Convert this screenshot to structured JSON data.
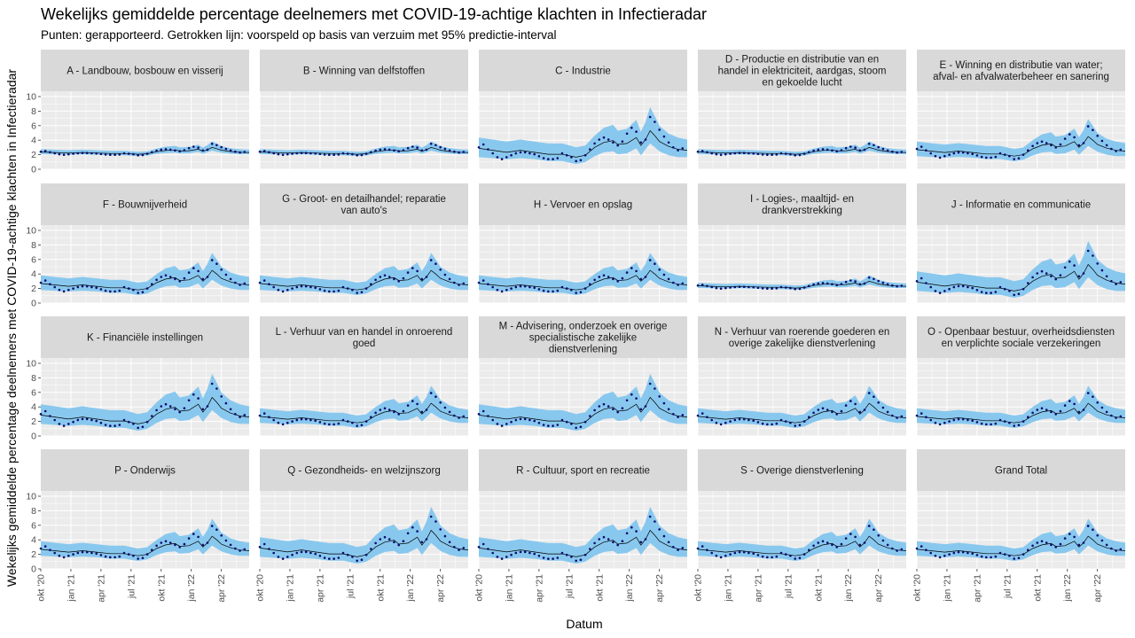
{
  "header": {
    "title": "Wekelijks gemiddelde percentage deelnemers met COVID-19-achtige klachten in Infectieradar",
    "subtitle": "Punten: gerapporteerd. Getrokken lijn: voorspeld op basis van verzuim met 95% predictie-interval"
  },
  "axes": {
    "xlabel": "Datum",
    "ylabel": "Wekelijks gemiddelde percentage deelnemers met COVID-19-achtige klachten in Infectieradar",
    "yticks": [
      "0",
      "2",
      "4",
      "6",
      "8",
      "10"
    ],
    "ylim": [
      0,
      10
    ],
    "xticks": [
      "okt '20",
      "jan '21",
      "apr '21",
      "jul '21",
      "okt '21",
      "jan '22",
      "apr '22"
    ],
    "xrange_weeks": [
      0,
      90
    ]
  },
  "colors": {
    "band": "#89c8ee",
    "points": "#0b0b6e",
    "line": "#000000",
    "panel_bg": "#ebebeb",
    "strip_bg": "#d9d9d9",
    "grid": "#ffffff"
  },
  "chart_data": {
    "type": "line",
    "layout": {
      "rows": 4,
      "cols": 5
    },
    "x_note": "weeks since okt '20",
    "facets": [
      {
        "label": [
          "A - Landbouw, bosbouw en visserij"
        ],
        "profile": "flat"
      },
      {
        "label": [
          "B - Winning van delfstoffen"
        ],
        "profile": "flat"
      },
      {
        "label": [
          "C - Industrie"
        ],
        "profile": "peaky"
      },
      {
        "label": [
          "D - Productie en distributie van en",
          "handel in elektriciteit, aardgas, stoom",
          "en gekoelde lucht"
        ],
        "profile": "flat"
      },
      {
        "label": [
          "E - Winning en distributie van water;",
          "afval- en afvalwaterbeheer en sanering"
        ],
        "profile": "moderate"
      },
      {
        "label": [
          "F - Bouwnijverheid"
        ],
        "profile": "moderate"
      },
      {
        "label": [
          "G - Groot- en detailhandel; reparatie",
          "van auto's"
        ],
        "profile": "moderate"
      },
      {
        "label": [
          "H - Vervoer en opslag"
        ],
        "profile": "moderate"
      },
      {
        "label": [
          "I - Logies-, maaltijd- en",
          "drankverstrekking"
        ],
        "profile": "flat"
      },
      {
        "label": [
          "J - Informatie en communicatie"
        ],
        "profile": "peaky"
      },
      {
        "label": [
          "K - Financiële instellingen"
        ],
        "profile": "peaky"
      },
      {
        "label": [
          "L - Verhuur van en handel in onroerend",
          "goed"
        ],
        "profile": "moderate"
      },
      {
        "label": [
          "M - Advisering, onderzoek en overige",
          "specialistische zakelijke",
          "dienstverlening"
        ],
        "profile": "peaky"
      },
      {
        "label": [
          "N - Verhuur van roerende goederen en",
          "overige zakelijke dienstverlening"
        ],
        "profile": "moderate"
      },
      {
        "label": [
          "O - Openbaar bestuur, overheidsdiensten",
          "en verplichte sociale verzekeringen"
        ],
        "profile": "moderate"
      },
      {
        "label": [
          "P - Onderwijs"
        ],
        "profile": "moderate"
      },
      {
        "label": [
          "Q - Gezondheids- en welzijnszorg"
        ],
        "profile": "peaky"
      },
      {
        "label": [
          "R - Cultuur, sport en recreatie"
        ],
        "profile": "peaky"
      },
      {
        "label": [
          "S - Overige dienstverlening"
        ],
        "profile": "moderate"
      },
      {
        "label": [
          "Grand Total"
        ],
        "profile": "moderate"
      }
    ],
    "reported": [
      [
        0,
        2.8
      ],
      [
        2,
        3.1
      ],
      [
        4,
        2.6
      ],
      [
        6,
        2.2
      ],
      [
        8,
        1.8
      ],
      [
        10,
        1.6
      ],
      [
        12,
        1.8
      ],
      [
        14,
        2.0
      ],
      [
        16,
        2.2
      ],
      [
        18,
        2.3
      ],
      [
        20,
        2.3
      ],
      [
        22,
        2.2
      ],
      [
        24,
        2.1
      ],
      [
        26,
        1.9
      ],
      [
        28,
        1.7
      ],
      [
        30,
        1.6
      ],
      [
        32,
        1.6
      ],
      [
        34,
        1.7
      ],
      [
        36,
        2.2
      ],
      [
        38,
        2.0
      ],
      [
        40,
        1.8
      ],
      [
        42,
        1.4
      ],
      [
        44,
        1.5
      ],
      [
        46,
        2.0
      ],
      [
        48,
        2.6
      ],
      [
        50,
        3.2
      ],
      [
        52,
        3.6
      ],
      [
        54,
        3.8
      ],
      [
        56,
        3.6
      ],
      [
        58,
        3.3
      ],
      [
        60,
        3.0
      ],
      [
        62,
        3.4
      ],
      [
        64,
        4.2
      ],
      [
        66,
        4.8
      ],
      [
        68,
        4.4
      ],
      [
        70,
        3.3
      ],
      [
        72,
        3.6
      ],
      [
        74,
        5.9
      ],
      [
        76,
        5.4
      ],
      [
        78,
        4.6
      ],
      [
        80,
        3.9
      ],
      [
        82,
        3.3
      ],
      [
        84,
        2.8
      ],
      [
        86,
        2.5
      ],
      [
        88,
        2.7
      ]
    ],
    "predicted": [
      [
        0,
        2.7
      ],
      [
        6,
        2.5
      ],
      [
        12,
        2.3
      ],
      [
        18,
        2.5
      ],
      [
        24,
        2.3
      ],
      [
        30,
        2.1
      ],
      [
        36,
        2.1
      ],
      [
        42,
        1.8
      ],
      [
        46,
        2.0
      ],
      [
        50,
        2.8
      ],
      [
        54,
        3.3
      ],
      [
        58,
        3.5
      ],
      [
        60,
        3.1
      ],
      [
        64,
        3.2
      ],
      [
        68,
        3.8
      ],
      [
        70,
        3.0
      ],
      [
        72,
        3.6
      ],
      [
        74,
        4.5
      ],
      [
        76,
        4.0
      ],
      [
        78,
        3.4
      ],
      [
        82,
        2.9
      ],
      [
        86,
        2.6
      ],
      [
        90,
        2.5
      ]
    ],
    "interval": [
      [
        0,
        1.8,
        3.8
      ],
      [
        6,
        1.7,
        3.6
      ],
      [
        12,
        1.6,
        3.4
      ],
      [
        18,
        1.7,
        3.6
      ],
      [
        24,
        1.6,
        3.4
      ],
      [
        30,
        1.4,
        3.2
      ],
      [
        36,
        1.4,
        3.2
      ],
      [
        42,
        1.1,
        2.8
      ],
      [
        46,
        1.3,
        3.0
      ],
      [
        50,
        1.9,
        4.0
      ],
      [
        54,
        2.3,
        4.8
      ],
      [
        58,
        2.4,
        5.1
      ],
      [
        60,
        2.1,
        4.5
      ],
      [
        64,
        2.2,
        4.7
      ],
      [
        68,
        2.7,
        5.6
      ],
      [
        70,
        2.0,
        4.4
      ],
      [
        72,
        2.6,
        5.4
      ],
      [
        74,
        3.2,
        6.9
      ],
      [
        76,
        2.8,
        6.0
      ],
      [
        78,
        2.4,
        5.0
      ],
      [
        82,
        2.0,
        4.2
      ],
      [
        86,
        1.8,
        3.8
      ],
      [
        90,
        1.8,
        3.6
      ]
    ]
  }
}
